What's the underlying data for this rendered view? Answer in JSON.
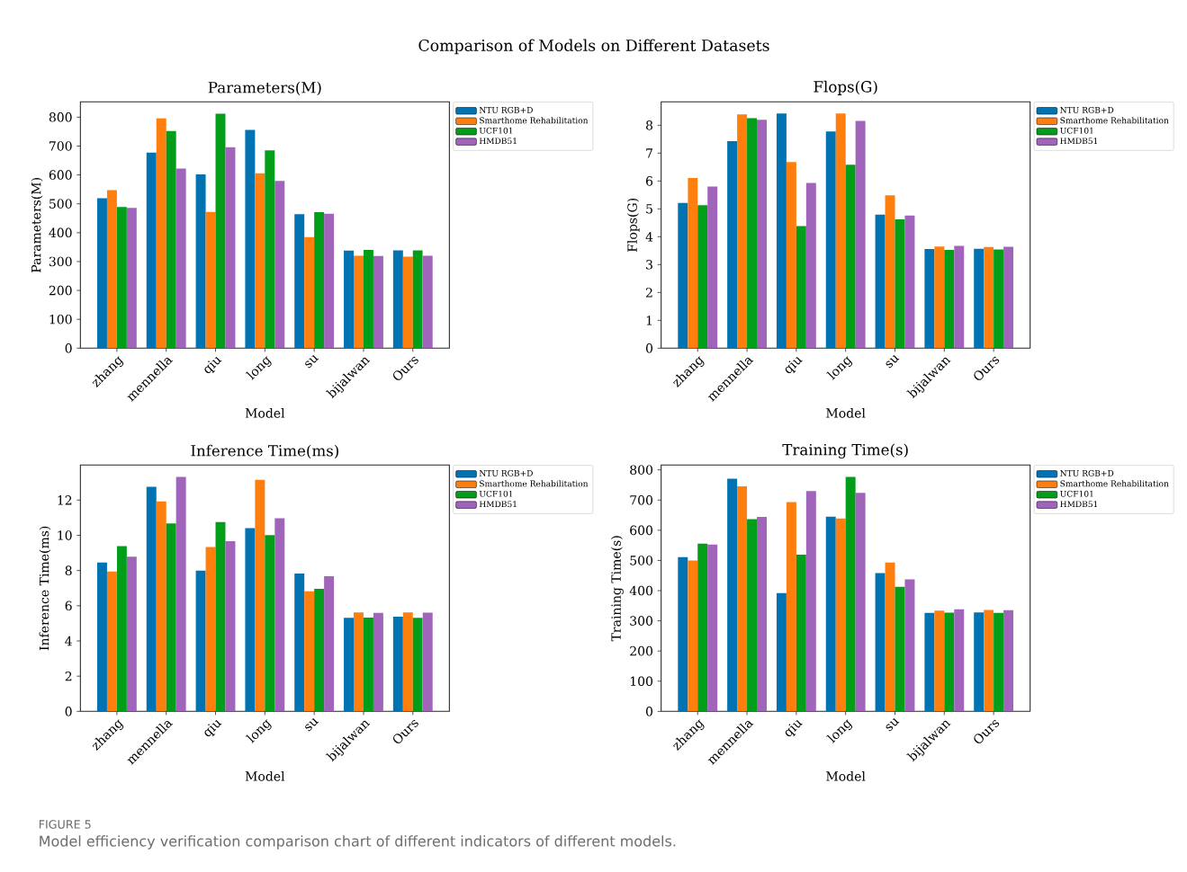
{
  "chart_data": [
    {
      "type": "other",
      "title": "Comparison of Models on Different Datasets",
      "annotations": [
        "FIGURE 5",
        "Model efficiency verification comparison chart of different indicators of different models."
      ]
    },
    {
      "type": "bar",
      "title": "Parameters(M)",
      "xlabel": "Model",
      "ylabel": "Parameters(M)",
      "categories": [
        "zhang",
        "mennella",
        "qiu",
        "long",
        "su",
        "bijalwan",
        "Ours"
      ],
      "ylim": [
        0,
        853
      ],
      "yticks": [
        0,
        100,
        200,
        300,
        400,
        500,
        600,
        700,
        800
      ],
      "legend": "top right",
      "series": [
        {
          "name": "NTU RGB+D",
          "color": "#0173b2",
          "values": [
            519,
            677,
            602,
            756,
            464,
            338,
            339
          ]
        },
        {
          "name": "Smarthome Rehabilitation",
          "color": "#ff7f0e",
          "values": [
            547,
            796,
            472,
            606,
            385,
            320,
            317
          ]
        },
        {
          "name": "UCF101",
          "color": "#029e19",
          "values": [
            489,
            752,
            812,
            685,
            471,
            340,
            339
          ]
        },
        {
          "name": "HMDB51",
          "color": "#a064bb",
          "values": [
            486,
            622,
            696,
            579,
            466,
            319,
            320
          ]
        }
      ]
    },
    {
      "type": "bar",
      "title": "Flops(G)",
      "xlabel": "Model",
      "ylabel": "Flops(G)",
      "categories": [
        "zhang",
        "mennella",
        "qiu",
        "long",
        "su",
        "bijalwan",
        "Ours"
      ],
      "ylim": [
        0,
        8.84
      ],
      "yticks": [
        0,
        1,
        2,
        3,
        4,
        5,
        6,
        7,
        8
      ],
      "legend": "top right",
      "series": [
        {
          "name": "NTU RGB+D",
          "color": "#0173b2",
          "values": [
            5.21,
            7.43,
            8.42,
            7.78,
            4.79,
            3.56,
            3.57
          ]
        },
        {
          "name": "Smarthome Rehabilitation",
          "color": "#ff7f0e",
          "values": [
            6.11,
            8.39,
            6.68,
            8.42,
            5.49,
            3.65,
            3.63
          ]
        },
        {
          "name": "UCF101",
          "color": "#029e19",
          "values": [
            5.13,
            8.26,
            4.38,
            6.58,
            4.62,
            3.53,
            3.54
          ]
        },
        {
          "name": "HMDB51",
          "color": "#a064bb",
          "values": [
            5.8,
            8.2,
            5.93,
            8.16,
            4.76,
            3.67,
            3.64
          ]
        }
      ]
    },
    {
      "type": "bar",
      "title": "Inference Time(ms)",
      "xlabel": "Model",
      "ylabel": "Inference Time(ms)",
      "categories": [
        "zhang",
        "mennella",
        "qiu",
        "long",
        "su",
        "bijalwan",
        "Ours"
      ],
      "ylim": [
        0,
        13.99
      ],
      "yticks": [
        0,
        2,
        4,
        6,
        8,
        10,
        12
      ],
      "legend": "top right",
      "series": [
        {
          "name": "NTU RGB+D",
          "color": "#0173b2",
          "values": [
            8.45,
            12.75,
            7.99,
            10.41,
            7.83,
            5.31,
            5.38
          ]
        },
        {
          "name": "Smarthome Rehabilitation",
          "color": "#ff7f0e",
          "values": [
            7.94,
            11.93,
            9.34,
            13.15,
            6.82,
            5.62,
            5.62
          ]
        },
        {
          "name": "UCF101",
          "color": "#029e19",
          "values": [
            9.38,
            10.68,
            10.75,
            10.01,
            6.96,
            5.33,
            5.31
          ]
        },
        {
          "name": "HMDB51",
          "color": "#a064bb",
          "values": [
            8.79,
            13.32,
            9.67,
            10.97,
            7.68,
            5.59,
            5.61
          ]
        }
      ]
    },
    {
      "type": "bar",
      "title": "Training Time(s)",
      "xlabel": "Model",
      "ylabel": "Training Time(s)",
      "categories": [
        "zhang",
        "mennella",
        "qiu",
        "long",
        "su",
        "bijalwan",
        "Ours"
      ],
      "ylim": [
        0,
        816
      ],
      "yticks": [
        0,
        100,
        200,
        300,
        400,
        500,
        600,
        700,
        800
      ],
      "legend": "top right",
      "series": [
        {
          "name": "NTU RGB+D",
          "color": "#0173b2",
          "values": [
            511,
            771,
            392,
            645,
            458,
            326,
            328
          ]
        },
        {
          "name": "Smarthome Rehabilitation",
          "color": "#ff7f0e",
          "values": [
            500,
            746,
            693,
            639,
            493,
            334,
            336
          ]
        },
        {
          "name": "UCF101",
          "color": "#029e19",
          "values": [
            556,
            637,
            519,
            777,
            413,
            327,
            326
          ]
        },
        {
          "name": "HMDB51",
          "color": "#a064bb",
          "values": [
            553,
            644,
            730,
            724,
            437,
            338,
            335
          ]
        }
      ]
    }
  ]
}
